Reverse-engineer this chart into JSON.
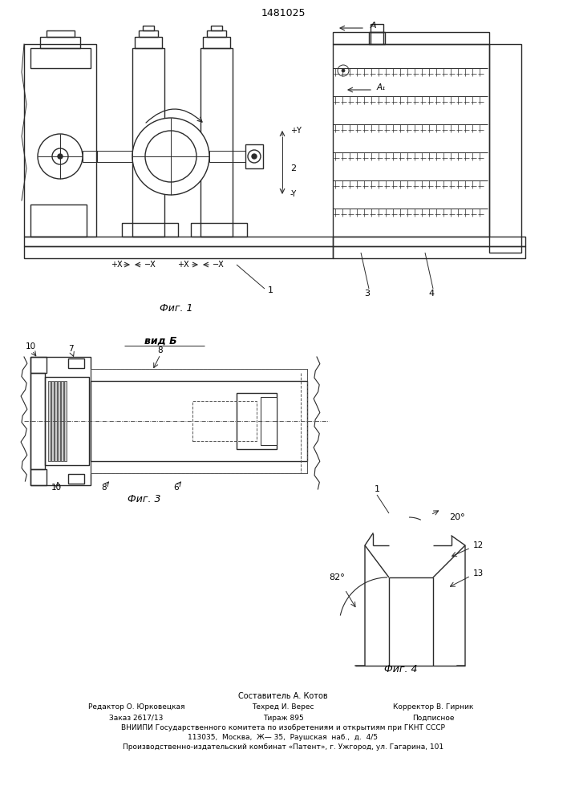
{
  "patent_number": "1481025",
  "fig1_label": "Фиг. 1",
  "fig3_label": "Фиг. 3",
  "fig4_label": "Фиг. 4",
  "vid_b_label": "вид Б",
  "bg_color": "#ffffff",
  "line_color": "#2a2a2a",
  "footer_line0": "Составитель А. Котов",
  "footer_line1a": "Редактор О. Юрковецкая",
  "footer_line1b": "Техред И. Верес",
  "footer_line1c": "Корректор В. Гирник",
  "footer_line2a": "Заказ 2617/13",
  "footer_line2b": "Тираж 895",
  "footer_line2c": "Подписное",
  "footer_line3": "ВНИИПИ Государственного комитета по изобретениям и открытиям при ГКНТ СССР",
  "footer_line4": "113035,  Москва,  Ж— 35,  Раушская  наб.,  д.  4/5",
  "footer_line5": "Производственно-издательский комбинат «Патент», г. Ужгород, ул. Гагарина, 101"
}
